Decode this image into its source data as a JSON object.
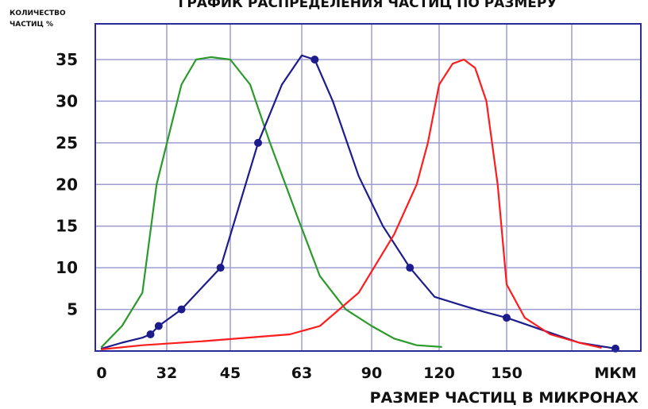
{
  "chart_data": {
    "type": "line",
    "title": "ГРАФИК РАСПРЕДЕЛЕНИЯ ЧАСТИЦ ПО РАЗМЕРУ",
    "xlabel": "РАЗМЕР ЧАСТИЦ В МИКРОНАХ",
    "ylabel_lines": [
      "КОЛИЧЕСТВО",
      "ЧАСТИЦ %"
    ],
    "x_unit_label": "МКМ",
    "x_ticks": [
      0,
      32,
      45,
      63,
      90,
      120,
      150
    ],
    "y_ticks": [
      5,
      10,
      15,
      20,
      25,
      30,
      35
    ],
    "xlim": [
      0,
      180
    ],
    "ylim": [
      0,
      39
    ],
    "grid": true,
    "colors": {
      "frame": "#2a2a9a",
      "grid": "#9d9dd2",
      "green": "#2a9a2a",
      "blue": "#1c1c8c",
      "red": "#ff1c1c"
    },
    "series": [
      {
        "color": "green",
        "markers": false,
        "points": [
          [
            0,
            0.5
          ],
          [
            10,
            3
          ],
          [
            15,
            5
          ],
          [
            20,
            7
          ],
          [
            27,
            20
          ],
          [
            35,
            32
          ],
          [
            38,
            35
          ],
          [
            41,
            35.3
          ],
          [
            45,
            35
          ],
          [
            50,
            32
          ],
          [
            55,
            25
          ],
          [
            62,
            16
          ],
          [
            70,
            9
          ],
          [
            80,
            5
          ],
          [
            90,
            3
          ],
          [
            100,
            1.5
          ],
          [
            110,
            0.7
          ],
          [
            121,
            0.5
          ]
        ]
      },
      {
        "color": "blue",
        "markers": true,
        "marker_points": [
          [
            24,
            2
          ],
          [
            28,
            3
          ],
          [
            35,
            5
          ],
          [
            43,
            10
          ],
          [
            52,
            25
          ],
          [
            68,
            35
          ],
          [
            107,
            10
          ],
          [
            150,
            4
          ],
          [
            180,
            0.3
          ]
        ],
        "points": [
          [
            0,
            0.3
          ],
          [
            10,
            1
          ],
          [
            20,
            1.6
          ],
          [
            24,
            2
          ],
          [
            28,
            3
          ],
          [
            35,
            5
          ],
          [
            43,
            10
          ],
          [
            52,
            25
          ],
          [
            58,
            32
          ],
          [
            63,
            35.5
          ],
          [
            68,
            35
          ],
          [
            75,
            30
          ],
          [
            85,
            21
          ],
          [
            95,
            15
          ],
          [
            107,
            10
          ],
          [
            118,
            6.5
          ],
          [
            130,
            5.5
          ],
          [
            140,
            4.7
          ],
          [
            150,
            4
          ],
          [
            160,
            2.5
          ],
          [
            170,
            1
          ],
          [
            180,
            0.3
          ]
        ]
      },
      {
        "color": "red",
        "markers": false,
        "points": [
          [
            0,
            0.2
          ],
          [
            20,
            0.7
          ],
          [
            40,
            1.2
          ],
          [
            60,
            2
          ],
          [
            70,
            3
          ],
          [
            85,
            7
          ],
          [
            100,
            14
          ],
          [
            110,
            20
          ],
          [
            115,
            25
          ],
          [
            120,
            32
          ],
          [
            126,
            34.5
          ],
          [
            131,
            35
          ],
          [
            136,
            34
          ],
          [
            141,
            30
          ],
          [
            146,
            20
          ],
          [
            150,
            8
          ],
          [
            155,
            4
          ],
          [
            162,
            2
          ],
          [
            170,
            1
          ],
          [
            176,
            0.4
          ]
        ]
      }
    ]
  }
}
